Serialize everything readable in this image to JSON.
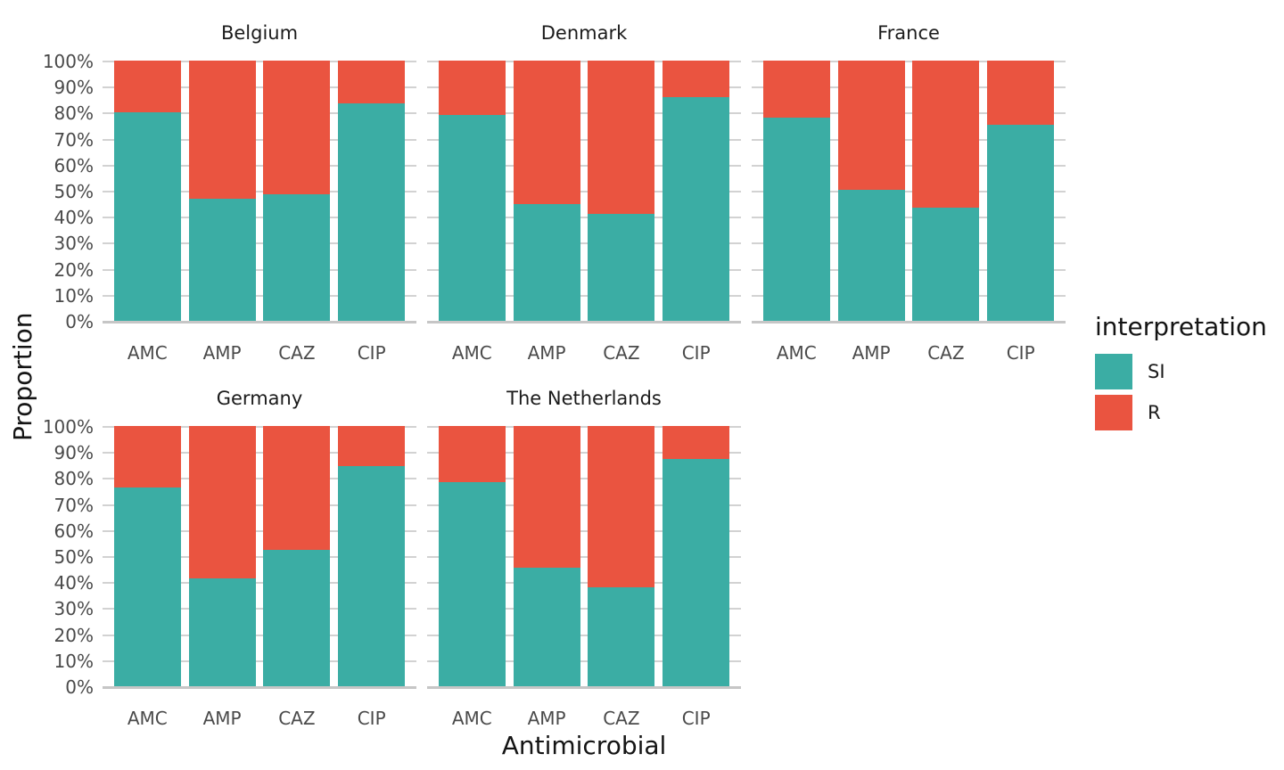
{
  "figure": {
    "ylabel": "Proportion",
    "xlabel": "Antimicrobial",
    "legend": {
      "title": "interpretation",
      "items": [
        {
          "label": "SI",
          "color": "#3BADA4"
        },
        {
          "label": "R",
          "color": "#EA5440"
        }
      ]
    }
  },
  "chart_data": {
    "type": "bar",
    "stacked": true,
    "normalized_to_100pct": true,
    "title": "",
    "xlabel": "Antimicrobial",
    "ylabel": "Proportion",
    "ylim": [
      0,
      100
    ],
    "y_ticks": [
      "100%",
      "90%",
      "80%",
      "70%",
      "60%",
      "50%",
      "40%",
      "30%",
      "20%",
      "10%",
      "0%"
    ],
    "grid": "horizontal",
    "legend_position": "right",
    "legend_title": "interpretation",
    "series_names": [
      "SI",
      "R"
    ],
    "categories": [
      "AMC",
      "AMP",
      "CAZ",
      "CIP"
    ],
    "facets": [
      {
        "title": "Belgium",
        "row": 0,
        "col": 0,
        "series": [
          {
            "name": "SI",
            "values": [
              80,
              47,
              48.5,
              83.5
            ]
          },
          {
            "name": "R",
            "values": [
              20,
              53,
              51.5,
              16.5
            ]
          }
        ]
      },
      {
        "title": "Denmark",
        "row": 0,
        "col": 1,
        "series": [
          {
            "name": "SI",
            "values": [
              79,
              45,
              41,
              86
            ]
          },
          {
            "name": "R",
            "values": [
              21,
              55,
              59,
              14
            ]
          }
        ]
      },
      {
        "title": "France",
        "row": 0,
        "col": 2,
        "series": [
          {
            "name": "SI",
            "values": [
              78,
              50.5,
              43.5,
              75.5
            ]
          },
          {
            "name": "R",
            "values": [
              22,
              49.5,
              56.5,
              24.5
            ]
          }
        ]
      },
      {
        "title": "Germany",
        "row": 1,
        "col": 0,
        "series": [
          {
            "name": "SI",
            "values": [
              76.5,
              41.5,
              52.5,
              84.5
            ]
          },
          {
            "name": "R",
            "values": [
              23.5,
              58.5,
              47.5,
              15.5
            ]
          }
        ]
      },
      {
        "title": "The Netherlands",
        "row": 1,
        "col": 1,
        "series": [
          {
            "name": "SI",
            "values": [
              78.5,
              45.5,
              38,
              87.5
            ]
          },
          {
            "name": "R",
            "values": [
              21.5,
              54.5,
              62,
              12.5
            ]
          }
        ]
      }
    ]
  }
}
